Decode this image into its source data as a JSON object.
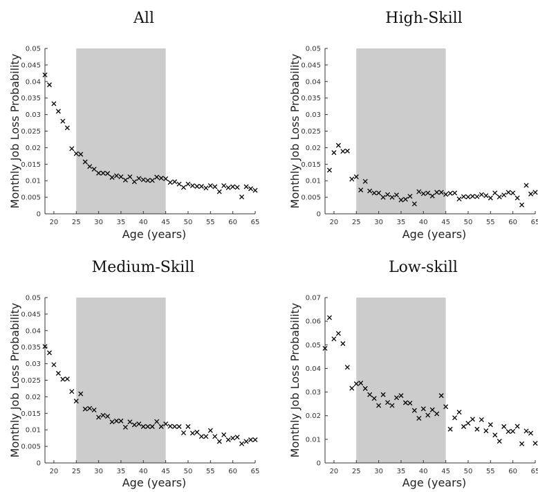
{
  "chart_data": [
    {
      "type": "scatter",
      "title": "All",
      "xlabel": "Age (years)",
      "ylabel": "Monthly Job Loss Probability",
      "xlim": [
        18,
        65
      ],
      "ylim": [
        0,
        0.05
      ],
      "xticks": [
        20,
        25,
        30,
        35,
        40,
        45,
        50,
        55,
        60,
        65
      ],
      "yticks": [
        0,
        0.005,
        0.01,
        0.015,
        0.02,
        0.025,
        0.03,
        0.035,
        0.04,
        0.045,
        0.05
      ],
      "ytick_labels": [
        "0",
        "0.005",
        "0.01",
        "0.015",
        "0.02",
        "0.025",
        "0.03",
        "0.035",
        "0.04",
        "0.045",
        "0.05"
      ],
      "shaded_region": [
        25,
        45
      ],
      "marker": "x",
      "x": [
        18,
        19,
        20,
        21,
        22,
        23,
        24,
        25,
        26,
        27,
        28,
        29,
        30,
        31,
        32,
        33,
        34,
        35,
        36,
        37,
        38,
        39,
        40,
        41,
        42,
        43,
        44,
        45,
        46,
        47,
        48,
        49,
        50,
        51,
        52,
        53,
        54,
        55,
        56,
        57,
        58,
        59,
        60,
        61,
        62,
        63,
        64,
        65
      ],
      "y": [
        0.042,
        0.039,
        0.0333,
        0.031,
        0.028,
        0.026,
        0.0197,
        0.0182,
        0.018,
        0.0157,
        0.0143,
        0.0135,
        0.0123,
        0.0123,
        0.0122,
        0.011,
        0.0115,
        0.0112,
        0.0102,
        0.0112,
        0.0097,
        0.0107,
        0.0103,
        0.0101,
        0.0101,
        0.0111,
        0.0108,
        0.0106,
        0.0095,
        0.0097,
        0.009,
        0.008,
        0.009,
        0.0085,
        0.0083,
        0.0083,
        0.0078,
        0.0085,
        0.0082,
        0.0067,
        0.0085,
        0.0079,
        0.0082,
        0.008,
        0.0051,
        0.0082,
        0.0076,
        0.0071
      ]
    },
    {
      "type": "scatter",
      "title": "High-Skill",
      "xlabel": "Age (years)",
      "ylabel": "Monthly Job Loss Probability",
      "xlim": [
        18,
        65
      ],
      "ylim": [
        0,
        0.05
      ],
      "xticks": [
        20,
        25,
        30,
        35,
        40,
        45,
        50,
        55,
        60,
        65
      ],
      "yticks": [
        0,
        0.005,
        0.01,
        0.015,
        0.02,
        0.025,
        0.03,
        0.035,
        0.04,
        0.045,
        0.05
      ],
      "ytick_labels": [
        "0",
        "0.005",
        "0.01",
        "0.015",
        "0.02",
        "0.025",
        "0.03",
        "0.035",
        "0.04",
        "0.045",
        "0.05"
      ],
      "shaded_region": [
        25,
        45
      ],
      "marker": "x",
      "x": [
        19,
        20,
        21,
        22,
        23,
        24,
        25,
        26,
        27,
        28,
        29,
        30,
        31,
        32,
        33,
        34,
        35,
        36,
        37,
        38,
        39,
        40,
        41,
        42,
        43,
        44,
        45,
        46,
        47,
        48,
        49,
        50,
        51,
        52,
        53,
        54,
        55,
        56,
        57,
        58,
        59,
        60,
        61,
        62,
        63,
        64,
        65
      ],
      "y": [
        0.0132,
        0.0185,
        0.0207,
        0.0189,
        0.019,
        0.0105,
        0.0112,
        0.0072,
        0.0098,
        0.0069,
        0.0063,
        0.0063,
        0.005,
        0.0058,
        0.005,
        0.0057,
        0.0042,
        0.0044,
        0.0053,
        0.003,
        0.0067,
        0.0061,
        0.0063,
        0.0054,
        0.0065,
        0.0065,
        0.0059,
        0.0062,
        0.0063,
        0.0045,
        0.0052,
        0.0051,
        0.0053,
        0.0052,
        0.0058,
        0.0055,
        0.0048,
        0.0063,
        0.0051,
        0.0057,
        0.0065,
        0.0063,
        0.0048,
        0.0027,
        0.0086,
        0.006,
        0.0065
      ]
    },
    {
      "type": "scatter",
      "title": "Medium-Skill",
      "xlabel": "Age (years)",
      "ylabel": "Monthly Job Loss Probability",
      "xlim": [
        18,
        65
      ],
      "ylim": [
        0,
        0.05
      ],
      "xticks": [
        20,
        25,
        30,
        35,
        40,
        45,
        50,
        55,
        60,
        65
      ],
      "yticks": [
        0,
        0.005,
        0.01,
        0.015,
        0.02,
        0.025,
        0.03,
        0.035,
        0.04,
        0.045,
        0.05
      ],
      "ytick_labels": [
        "0",
        "0.005",
        "0.01",
        "0.015",
        "0.02",
        "0.025",
        "0.03",
        "0.035",
        "0.04",
        "0.045",
        "0.05"
      ],
      "shaded_region": [
        25,
        45
      ],
      "marker": "x",
      "x": [
        18,
        19,
        20,
        21,
        22,
        23,
        24,
        25,
        26,
        27,
        28,
        29,
        30,
        31,
        32,
        33,
        34,
        35,
        36,
        37,
        38,
        39,
        40,
        41,
        42,
        43,
        44,
        45,
        46,
        47,
        48,
        49,
        50,
        51,
        52,
        53,
        54,
        55,
        56,
        57,
        58,
        59,
        60,
        61,
        62,
        63,
        64,
        65
      ],
      "y": [
        0.0352,
        0.0333,
        0.0297,
        0.0271,
        0.0253,
        0.0254,
        0.0216,
        0.0187,
        0.0209,
        0.0163,
        0.0165,
        0.016,
        0.0138,
        0.0144,
        0.0141,
        0.0124,
        0.0127,
        0.0127,
        0.0108,
        0.0124,
        0.0115,
        0.0118,
        0.011,
        0.011,
        0.011,
        0.0125,
        0.011,
        0.0118,
        0.0111,
        0.011,
        0.011,
        0.0091,
        0.011,
        0.009,
        0.0093,
        0.008,
        0.008,
        0.0098,
        0.008,
        0.0065,
        0.0085,
        0.007,
        0.0075,
        0.0078,
        0.0058,
        0.0065,
        0.007,
        0.007
      ]
    },
    {
      "type": "scatter",
      "title": "Low-skill",
      "xlabel": "Age (years)",
      "ylabel": "Monthly Job Loss Probability",
      "xlim": [
        18,
        65
      ],
      "ylim": [
        0,
        0.07
      ],
      "xticks": [
        20,
        25,
        30,
        35,
        40,
        45,
        50,
        55,
        60,
        65
      ],
      "yticks": [
        0,
        0.01,
        0.02,
        0.03,
        0.04,
        0.05,
        0.06,
        0.07
      ],
      "ytick_labels": [
        "0",
        "0.01",
        "0.02",
        "0.03",
        "0.04",
        "0.05",
        "0.06",
        "0.07"
      ],
      "shaded_region": [
        25,
        45
      ],
      "marker": "x",
      "x": [
        18,
        19,
        20,
        21,
        22,
        23,
        24,
        25,
        26,
        27,
        28,
        29,
        30,
        31,
        32,
        33,
        34,
        35,
        36,
        37,
        38,
        39,
        40,
        41,
        42,
        43,
        44,
        45,
        46,
        47,
        48,
        49,
        50,
        51,
        52,
        53,
        54,
        55,
        56,
        57,
        58,
        59,
        60,
        61,
        62,
        63,
        64,
        65
      ],
      "y": [
        0.0485,
        0.0615,
        0.0525,
        0.0548,
        0.0505,
        0.0405,
        0.0316,
        0.0335,
        0.0338,
        0.0315,
        0.0289,
        0.0273,
        0.0243,
        0.0289,
        0.0256,
        0.0243,
        0.0276,
        0.0285,
        0.0255,
        0.0253,
        0.0222,
        0.0189,
        0.0229,
        0.0202,
        0.0225,
        0.0208,
        0.0285,
        0.0238,
        0.0143,
        0.0191,
        0.0215,
        0.0154,
        0.0168,
        0.0185,
        0.0143,
        0.0183,
        0.0136,
        0.0162,
        0.0118,
        0.0092,
        0.0154,
        0.0133,
        0.0134,
        0.0155,
        0.0081,
        0.0135,
        0.0126,
        0.0083
      ]
    }
  ]
}
